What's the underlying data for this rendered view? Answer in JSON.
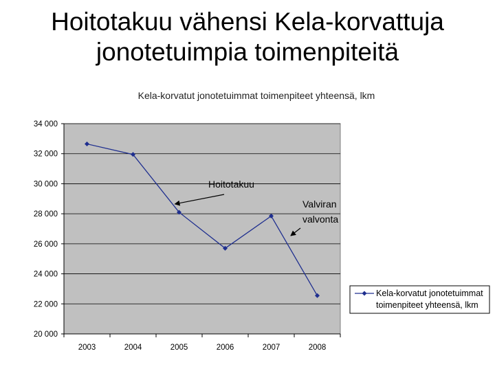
{
  "slide": {
    "title_line1": "Hoitotakuu vähensi Kela-korvattuja",
    "title_line2": "jonotetuimpia toimenpiteitä"
  },
  "chart_data": {
    "type": "line",
    "title": "Kela-korvatut jonotetuimmat toimenpiteet yhteensä, lkm",
    "categories": [
      "2003",
      "2004",
      "2005",
      "2006",
      "2007",
      "2008"
    ],
    "series": [
      {
        "name": "Kela-korvatut jonotetuimmat toimenpiteet yhteensä, lkm",
        "name_line1": "Kela-korvatut jonotetuimmat",
        "name_line2": "toimenpiteet yhteensä, lkm",
        "values": [
          32650,
          31950,
          28100,
          25700,
          27850,
          22550
        ],
        "color": "#1f2f8f"
      }
    ],
    "ylim": [
      20000,
      34000
    ],
    "yticks": [
      20000,
      22000,
      24000,
      26000,
      28000,
      30000,
      32000,
      34000
    ],
    "ytick_labels": [
      "20 000",
      "22 000",
      "24 000",
      "26 000",
      "28 000",
      "30 000",
      "32 000",
      "34 000"
    ],
    "grid": true,
    "plot_background": "#c0c0c0",
    "legend_position": "right",
    "annotations": [
      {
        "text": "Hoitotakuu",
        "target_category": "2005"
      },
      {
        "text_line1": "Valviran",
        "text_line2": "valvonta",
        "target_category": "2007"
      }
    ]
  }
}
